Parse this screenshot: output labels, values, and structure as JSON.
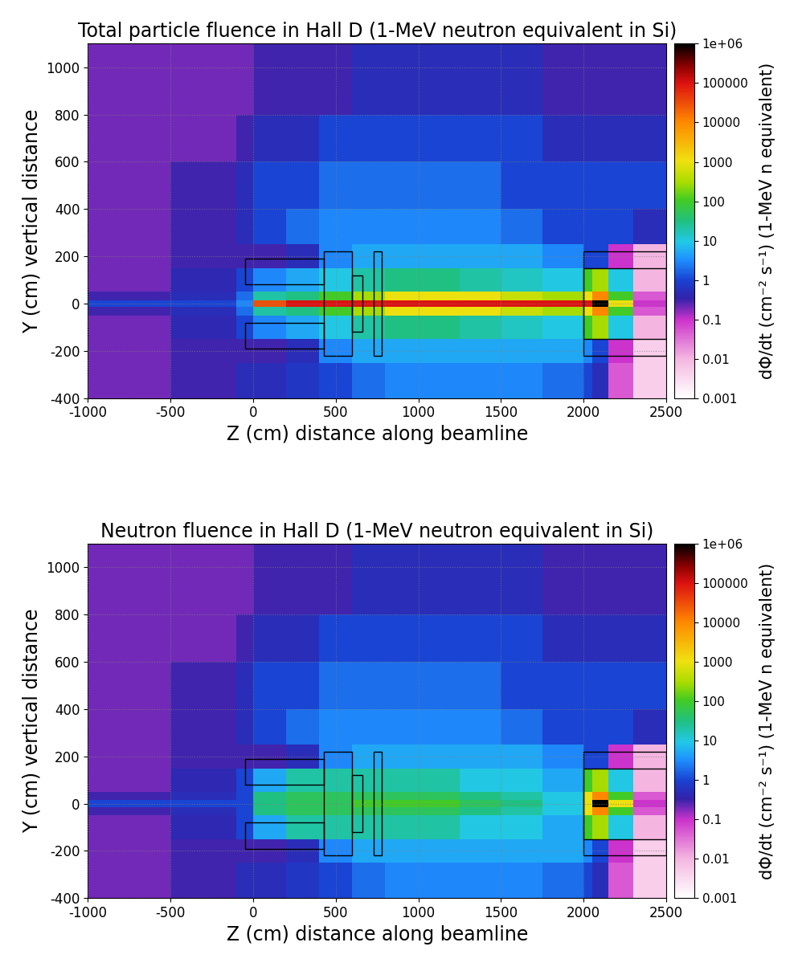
{
  "chart_data": [
    {
      "type": "heatmap",
      "title": "Total particle fluence in Hall D (1-MeV neutron equivalent in Si)",
      "x_label": "Z (cm) distance along beamline",
      "y_label": "Y (cm) vertical distance",
      "xlim": [
        -1000,
        2500
      ],
      "ylim": [
        -400,
        1100
      ],
      "xticks": [
        -1000,
        -500,
        0,
        500,
        1000,
        1500,
        2000,
        2500
      ],
      "yticks": [
        -400,
        -200,
        0,
        200,
        400,
        600,
        800,
        1000
      ],
      "grid": true,
      "x_edges": [
        -1000,
        -500,
        -100,
        0,
        200,
        400,
        600,
        800,
        1000,
        1250,
        1500,
        1750,
        2000,
        2050,
        2150,
        2300,
        2500
      ],
      "y_edges": [
        -400,
        -250,
        -150,
        -50,
        -15,
        15,
        50,
        150,
        250,
        400,
        600,
        800,
        1100
      ],
      "cells": [
        [
          0.2,
          0.3,
          0.5,
          0.5,
          0.7,
          1,
          2,
          3,
          3,
          3,
          3,
          2,
          1,
          0.5,
          0.05,
          0.005
        ],
        [
          0.2,
          0.3,
          0.3,
          0.3,
          0.5,
          3,
          5,
          5,
          5,
          5,
          5,
          5,
          3,
          1,
          0.1,
          0.005
        ],
        [
          0.2,
          0.4,
          1,
          3,
          5,
          10,
          20,
          30,
          30,
          20,
          15,
          10,
          100,
          300,
          10,
          0.01
        ],
        [
          0.3,
          0.5,
          2,
          20,
          30,
          100,
          300,
          1000,
          1000,
          1000,
          500,
          300,
          1000,
          10000,
          100,
          0.05
        ],
        [
          1,
          1,
          3,
          30000,
          100000,
          100000,
          100000,
          100000,
          100000,
          100000,
          100000,
          100000,
          100000,
          1000000,
          1000,
          0.1
        ],
        [
          0.3,
          0.5,
          2,
          20,
          30,
          100,
          300,
          1000,
          1000,
          1000,
          500,
          300,
          1000,
          10000,
          100,
          0.05
        ],
        [
          0.2,
          0.4,
          1,
          3,
          5,
          10,
          20,
          30,
          30,
          20,
          15,
          10,
          100,
          300,
          10,
          0.01
        ],
        [
          0.2,
          0.3,
          0.3,
          0.3,
          0.5,
          3,
          5,
          5,
          5,
          5,
          5,
          3,
          1,
          1,
          0.1,
          0.01
        ],
        [
          0.2,
          0.3,
          0.5,
          1,
          2,
          3,
          3,
          3,
          3,
          3,
          2,
          1,
          1,
          1,
          1,
          0.5
        ],
        [
          0.2,
          0.3,
          0.5,
          1,
          1,
          2,
          2,
          2,
          2,
          2,
          1,
          1,
          1,
          1,
          1,
          1
        ],
        [
          0.2,
          0.2,
          0.3,
          0.5,
          0.5,
          1,
          1,
          1,
          1,
          1,
          1,
          0.5,
          0.5,
          0.5,
          0.5,
          0.5
        ],
        [
          0.2,
          0.2,
          0.2,
          0.3,
          0.3,
          0.3,
          0.5,
          0.5,
          0.5,
          0.5,
          0.5,
          0.3,
          0.3,
          0.3,
          0.3,
          0.3
        ]
      ],
      "outlines": [
        [
          -50,
          80,
          430,
          190
        ],
        [
          -50,
          -190,
          430,
          -80
        ],
        [
          430,
          -220,
          600,
          220
        ],
        [
          600,
          -120,
          660,
          120
        ],
        [
          730,
          -220,
          780,
          220
        ],
        [
          2000,
          -220,
          2500,
          220
        ],
        [
          2000,
          -150,
          2500,
          150
        ]
      ],
      "colorbar_label": "dΦ/dt (cm⁻² s⁻¹) (1-MeV n equivalent)",
      "colorbar_range": [
        0.001,
        1000000
      ],
      "colorbar_ticks": [
        0.001,
        0.01,
        0.1,
        1,
        10,
        100,
        1000,
        10000,
        100000,
        {
          "value": 1000000,
          "label": "1e+06"
        }
      ]
    },
    {
      "type": "heatmap",
      "title": "Neutron fluence in Hall D (1-MeV neutron equivalent in Si)",
      "x_label": "Z (cm) distance along beamline",
      "y_label": "Y (cm) vertical distance",
      "xlim": [
        -1000,
        2500
      ],
      "ylim": [
        -400,
        1100
      ],
      "xticks": [
        -1000,
        -500,
        0,
        500,
        1000,
        1500,
        2000,
        2500
      ],
      "yticks": [
        -400,
        -200,
        0,
        200,
        400,
        600,
        800,
        1000
      ],
      "grid": true,
      "x_edges": [
        -1000,
        -500,
        -100,
        0,
        200,
        400,
        600,
        800,
        1000,
        1250,
        1500,
        1750,
        2000,
        2050,
        2150,
        2300,
        2500
      ],
      "y_edges": [
        -400,
        -250,
        -150,
        -50,
        -15,
        15,
        50,
        150,
        250,
        400,
        600,
        800,
        1100
      ],
      "cells": [
        [
          0.2,
          0.3,
          0.5,
          0.5,
          0.7,
          1,
          2,
          3,
          3,
          3,
          3,
          2,
          1,
          0.5,
          0.05,
          0.005
        ],
        [
          0.2,
          0.3,
          0.3,
          0.3,
          0.5,
          3,
          5,
          5,
          5,
          5,
          5,
          5,
          3,
          1,
          0.1,
          0.005
        ],
        [
          0.2,
          0.4,
          1,
          5,
          20,
          20,
          20,
          20,
          20,
          10,
          10,
          5,
          100,
          300,
          10,
          0.01
        ],
        [
          0.3,
          0.5,
          1,
          30,
          50,
          50,
          50,
          50,
          50,
          30,
          20,
          10,
          1000,
          10000,
          100,
          0.05
        ],
        [
          1,
          1,
          1,
          30,
          50,
          50,
          100,
          100,
          100,
          50,
          30,
          10,
          1000,
          1000000,
          1000,
          0.1
        ],
        [
          0.3,
          0.5,
          1,
          30,
          50,
          50,
          50,
          50,
          50,
          30,
          20,
          10,
          1000,
          10000,
          100,
          0.05
        ],
        [
          0.2,
          0.4,
          1,
          5,
          20,
          20,
          20,
          20,
          20,
          10,
          10,
          5,
          100,
          300,
          10,
          0.01
        ],
        [
          0.2,
          0.3,
          0.3,
          0.3,
          0.5,
          3,
          5,
          5,
          5,
          5,
          5,
          3,
          1,
          1,
          0.1,
          0.01
        ],
        [
          0.2,
          0.3,
          0.5,
          1,
          2,
          3,
          3,
          3,
          3,
          3,
          2,
          1,
          1,
          1,
          1,
          0.5
        ],
        [
          0.2,
          0.3,
          0.5,
          1,
          1,
          2,
          2,
          2,
          2,
          2,
          1,
          1,
          1,
          1,
          1,
          1
        ],
        [
          0.2,
          0.2,
          0.3,
          0.5,
          0.5,
          1,
          1,
          1,
          1,
          1,
          1,
          0.5,
          0.5,
          0.5,
          0.5,
          0.5
        ],
        [
          0.2,
          0.2,
          0.2,
          0.3,
          0.3,
          0.3,
          0.5,
          0.5,
          0.5,
          0.5,
          0.5,
          0.3,
          0.3,
          0.3,
          0.3,
          0.3
        ]
      ],
      "outlines": [
        [
          -50,
          80,
          430,
          190
        ],
        [
          -50,
          -190,
          430,
          -80
        ],
        [
          430,
          -220,
          600,
          220
        ],
        [
          600,
          -120,
          660,
          120
        ],
        [
          730,
          -220,
          780,
          220
        ],
        [
          2000,
          -220,
          2500,
          220
        ],
        [
          2000,
          -150,
          2500,
          150
        ]
      ],
      "colorbar_label": "dΦ/dt (cm⁻² s⁻¹) (1-MeV n equivalent)",
      "colorbar_range": [
        0.001,
        1000000
      ],
      "colorbar_ticks": [
        0.001,
        0.01,
        0.1,
        1,
        10,
        100,
        1000,
        10000,
        100000,
        {
          "value": 1000000,
          "label": "1e+06"
        }
      ]
    }
  ]
}
